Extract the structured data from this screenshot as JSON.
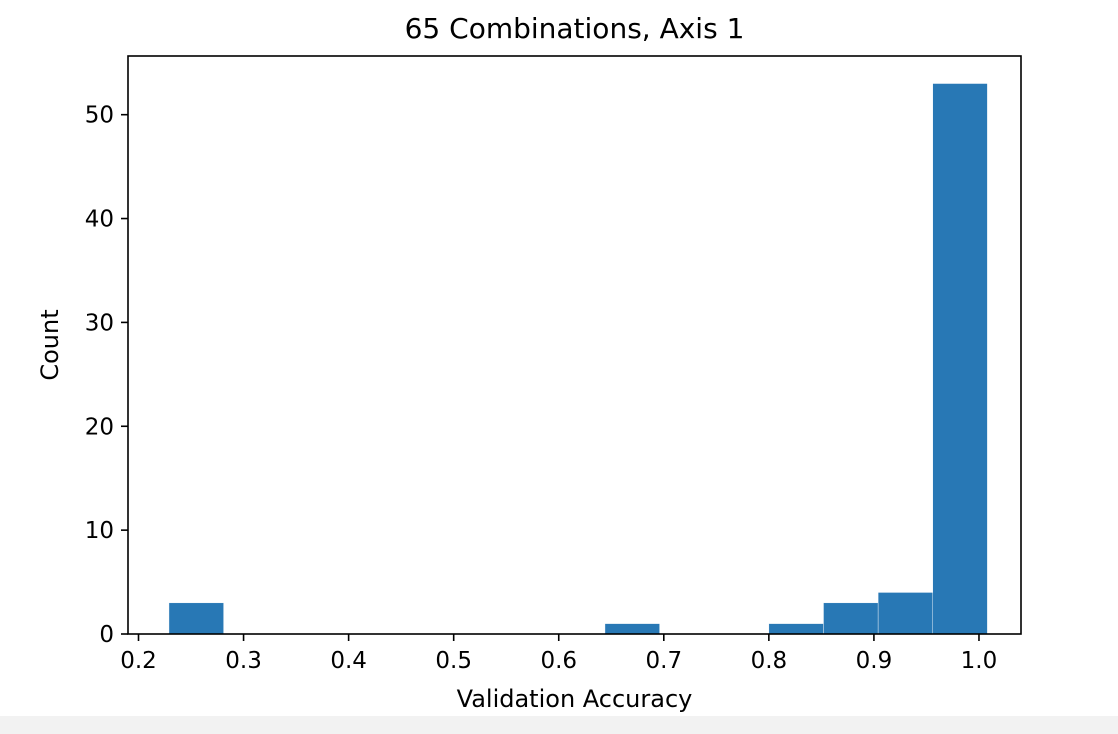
{
  "chart_data": {
    "type": "bar",
    "title": "65 Combinations, Axis 1",
    "xlabel": "Validation Accuracy",
    "ylabel": "Count",
    "xlim": [
      0.19,
      1.04
    ],
    "ylim": [
      0,
      55.65
    ],
    "xticks": [
      "0.2",
      "0.3",
      "0.4",
      "0.5",
      "0.6",
      "0.7",
      "0.8",
      "0.9",
      "1.0"
    ],
    "yticks": [
      "0",
      "10",
      "20",
      "30",
      "40",
      "50"
    ],
    "bin_edges": [
      0.229,
      0.281,
      0.333,
      0.385,
      0.437,
      0.489,
      0.54,
      0.592,
      0.644,
      0.696,
      0.748,
      0.8,
      0.852,
      0.904,
      0.956,
      1.008
    ],
    "values": [
      3,
      0,
      0,
      0,
      0,
      0,
      0,
      0,
      1,
      0,
      0,
      1,
      3,
      4,
      53
    ],
    "bar_color": "#2878b5",
    "grid": false,
    "legend": "none"
  }
}
